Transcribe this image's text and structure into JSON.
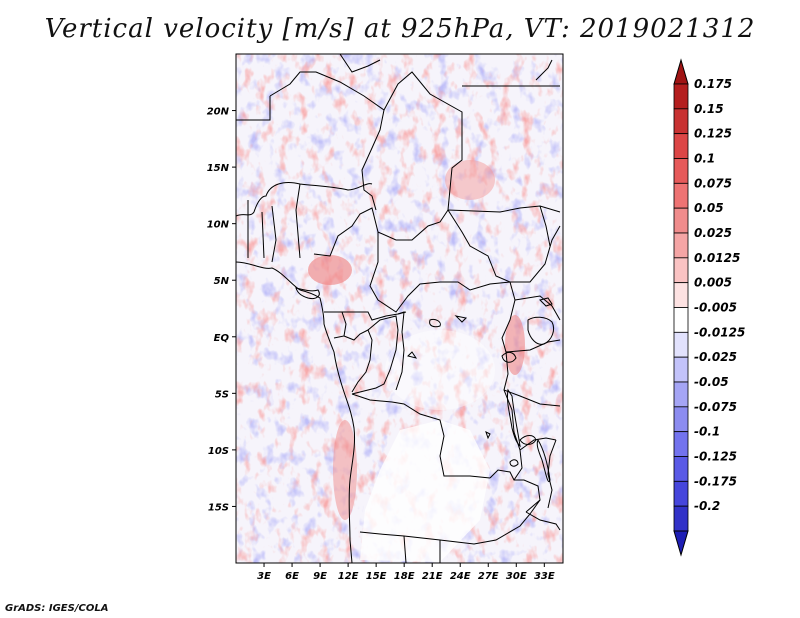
{
  "title": "Vertical velocity [m/s] at 925hPa, VT: 2019021312",
  "credit": "GrADS: IGES/COLA",
  "map": {
    "lon_range": [
      0,
      35
    ],
    "lat_range": [
      -20,
      25
    ],
    "lat_ticks": [
      {
        "lat": 20,
        "label": "20N"
      },
      {
        "lat": 15,
        "label": "15N"
      },
      {
        "lat": 10,
        "label": "10N"
      },
      {
        "lat": 5,
        "label": "5N"
      },
      {
        "lat": 0,
        "label": "EQ"
      },
      {
        "lat": -5,
        "label": "5S"
      },
      {
        "lat": -10,
        "label": "10S"
      },
      {
        "lat": -15,
        "label": "15S"
      }
    ],
    "lon_ticks": [
      {
        "lon": 3,
        "label": "3E"
      },
      {
        "lon": 6,
        "label": "6E"
      },
      {
        "lon": 9,
        "label": "9E"
      },
      {
        "lon": 12,
        "label": "12E"
      },
      {
        "lon": 15,
        "label": "15E"
      },
      {
        "lon": 18,
        "label": "18E"
      },
      {
        "lon": 21,
        "label": "21E"
      },
      {
        "lon": 24,
        "label": "24E"
      },
      {
        "lon": 27,
        "label": "27E"
      },
      {
        "lon": 30,
        "label": "30E"
      },
      {
        "lon": 33,
        "label": "33E"
      }
    ]
  },
  "colorbar": {
    "levels": [
      {
        "label": "0.175",
        "color": "#b41e1e"
      },
      {
        "label": "0.15",
        "color": "#c83232"
      },
      {
        "label": "0.125",
        "color": "#dc4646"
      },
      {
        "label": "0.1",
        "color": "#e65a5a"
      },
      {
        "label": "0.075",
        "color": "#ee7373"
      },
      {
        "label": "0.05",
        "color": "#f08c8c"
      },
      {
        "label": "0.025",
        "color": "#f5a5a5"
      },
      {
        "label": "0.0125",
        "color": "#fac3c3"
      },
      {
        "label": "0.005",
        "color": "#fde2e2"
      },
      {
        "label": "-0.005",
        "color": "#ffffff"
      },
      {
        "label": "-0.0125",
        "color": "#e2e2fd"
      },
      {
        "label": "-0.025",
        "color": "#c3c3fa"
      },
      {
        "label": "-0.05",
        "color": "#a5a5f5"
      },
      {
        "label": "-0.075",
        "color": "#8c8cf0"
      },
      {
        "label": "-0.1",
        "color": "#7373ee"
      },
      {
        "label": "-0.125",
        "color": "#5a5ae6"
      },
      {
        "label": "-0.175",
        "color": "#4646dc"
      },
      {
        "label": "-0.2",
        "color": "#3232c8"
      }
    ],
    "top_arrow_color": "#a01414",
    "bottom_arrow_color": "#1e1eb4"
  }
}
